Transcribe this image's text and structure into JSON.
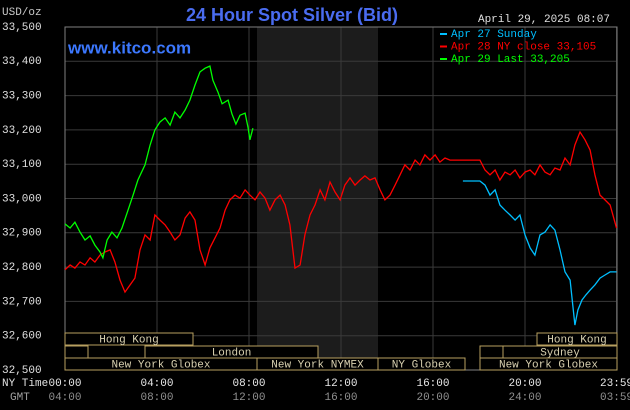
{
  "chart_data": {
    "type": "line",
    "title": "24 Hour Spot Silver (Bid)",
    "y_label": "USD/oz",
    "timestamp": "April 29, 2025 08:07",
    "watermark": "www.kitco.com",
    "x_label": "NY Time",
    "x2_label": "GMT",
    "xlim": [
      0,
      24
    ],
    "xticks": [
      {
        "value": 0,
        "label": "00:00"
      },
      {
        "value": 4,
        "label": "04:00"
      },
      {
        "value": 8,
        "label": "08:00"
      },
      {
        "value": 12,
        "label": "12:00"
      },
      {
        "value": 16,
        "label": "16:00"
      },
      {
        "value": 20,
        "label": "20:00"
      },
      {
        "value": 23.98,
        "label": "23:59"
      }
    ],
    "x2ticks": [
      {
        "value": 0,
        "label": "04:00"
      },
      {
        "value": 4,
        "label": "08:00"
      },
      {
        "value": 8,
        "label": "12:00"
      },
      {
        "value": 12,
        "label": "16:00"
      },
      {
        "value": 16,
        "label": "20:00"
      },
      {
        "value": 20,
        "label": "24:00"
      },
      {
        "value": 23.98,
        "label": "03:59"
      }
    ],
    "ylim": [
      32.5,
      33.5
    ],
    "yticks": [
      {
        "value": 32.5,
        "label": "32,500"
      },
      {
        "value": 32.6,
        "label": "32,600"
      },
      {
        "value": 32.7,
        "label": "32,700"
      },
      {
        "value": 32.8,
        "label": "32,800"
      },
      {
        "value": 32.9,
        "label": "32,900"
      },
      {
        "value": 33.0,
        "label": "33,000"
      },
      {
        "value": 33.1,
        "label": "33,100"
      },
      {
        "value": 33.2,
        "label": "33,200"
      },
      {
        "value": 33.3,
        "label": "33,300"
      },
      {
        "value": 33.4,
        "label": "33,400"
      },
      {
        "value": 33.5,
        "label": "33,500"
      }
    ],
    "grid": true,
    "legend": "top-right",
    "sessions": [
      "Hong Kong",
      "London",
      "New York Globex",
      "New York NYMEX",
      "NY Globex",
      "Hong Kong",
      "Sydney",
      "New York Globex"
    ],
    "series": [
      {
        "name": "Apr 27 Sunday",
        "color": "#00bfff",
        "x": [
          17.3,
          17.61,
          18.04,
          18.26,
          18.48,
          18.7,
          18.91,
          19.13,
          19.35,
          19.57,
          19.78,
          20.0,
          20.22,
          20.43,
          20.65,
          20.87,
          21.09,
          21.3,
          21.52,
          21.74,
          21.96,
          22.17,
          22.3,
          22.48,
          22.65,
          22.83,
          23.04,
          23.26,
          23.48,
          23.7,
          23.98
        ],
        "values": [
          33.051,
          33.051,
          33.051,
          33.039,
          33.01,
          33.025,
          32.981,
          32.966,
          32.952,
          32.937,
          32.952,
          32.894,
          32.856,
          32.835,
          32.894,
          32.902,
          32.923,
          32.908,
          32.85,
          32.786,
          32.762,
          32.631,
          32.675,
          32.704,
          32.719,
          32.733,
          32.748,
          32.768,
          32.777,
          32.786,
          32.786
        ]
      },
      {
        "name": "Apr 28 NY close 33,105",
        "color": "#ff0000",
        "x": [
          0,
          0.22,
          0.43,
          0.65,
          0.87,
          1.09,
          1.3,
          1.52,
          1.74,
          1.96,
          2.17,
          2.39,
          2.61,
          2.83,
          3.04,
          3.26,
          3.48,
          3.7,
          3.91,
          4.13,
          4.35,
          4.57,
          4.78,
          5.0,
          5.22,
          5.43,
          5.65,
          5.87,
          6.09,
          6.3,
          6.52,
          6.74,
          6.96,
          7.17,
          7.39,
          7.61,
          7.83,
          8.04,
          8.26,
          8.48,
          8.7,
          8.91,
          9.13,
          9.35,
          9.57,
          9.78,
          10.0,
          10.22,
          10.43,
          10.65,
          10.87,
          11.09,
          11.3,
          11.52,
          11.74,
          11.96,
          12.17,
          12.39,
          12.61,
          12.83,
          13.04,
          13.26,
          13.48,
          13.7,
          13.91,
          14.13,
          14.35,
          14.57,
          14.78,
          15.0,
          15.22,
          15.43,
          15.65,
          15.87,
          16.09,
          16.3,
          16.52,
          16.74,
          17.17,
          17.61,
          18.04,
          18.26,
          18.48,
          18.7,
          18.91,
          19.13,
          19.35,
          19.57,
          19.78,
          20.0,
          20.22,
          20.43,
          20.65,
          20.87,
          21.09,
          21.3,
          21.52,
          21.74,
          21.96,
          22.17,
          22.39,
          22.61,
          22.83,
          23.04,
          23.26,
          23.48,
          23.7,
          23.91,
          23.98
        ],
        "values": [
          32.792,
          32.806,
          32.797,
          32.815,
          32.806,
          32.827,
          32.815,
          32.835,
          32.844,
          32.85,
          32.815,
          32.762,
          32.727,
          32.748,
          32.768,
          32.85,
          32.894,
          32.879,
          32.952,
          32.937,
          32.923,
          32.902,
          32.879,
          32.894,
          32.943,
          32.961,
          32.937,
          32.85,
          32.806,
          32.856,
          32.885,
          32.914,
          32.966,
          32.996,
          33.01,
          33.001,
          33.025,
          33.01,
          32.996,
          33.019,
          33.001,
          32.966,
          32.996,
          33.01,
          32.981,
          32.923,
          32.797,
          32.806,
          32.894,
          32.952,
          32.981,
          33.025,
          32.996,
          33.048,
          33.019,
          32.996,
          33.039,
          33.06,
          33.039,
          33.054,
          33.066,
          33.054,
          33.06,
          33.025,
          32.996,
          33.01,
          33.039,
          33.069,
          33.098,
          33.083,
          33.112,
          33.098,
          33.127,
          33.112,
          33.127,
          33.106,
          33.118,
          33.112,
          33.112,
          33.112,
          33.112,
          33.083,
          33.069,
          33.083,
          33.054,
          33.077,
          33.069,
          33.083,
          33.06,
          33.077,
          33.083,
          33.069,
          33.098,
          33.077,
          33.069,
          33.089,
          33.083,
          33.118,
          33.098,
          33.156,
          33.194,
          33.171,
          33.141,
          33.069,
          33.01,
          32.996,
          32.981,
          32.931,
          32.914
        ]
      },
      {
        "name": "Apr 29 Last 33,205",
        "color": "#00ff00",
        "x": [
          0,
          0.22,
          0.43,
          0.65,
          0.87,
          1.09,
          1.3,
          1.52,
          1.65,
          1.83,
          2.04,
          2.26,
          2.48,
          2.74,
          2.96,
          3.17,
          3.48,
          3.7,
          3.91,
          4.13,
          4.35,
          4.57,
          4.78,
          5.0,
          5.22,
          5.43,
          5.65,
          5.87,
          6.09,
          6.3,
          6.43,
          6.65,
          6.83,
          7.09,
          7.26,
          7.43,
          7.61,
          7.83,
          7.96,
          8.04,
          8.17
        ],
        "values": [
          32.926,
          32.914,
          32.931,
          32.902,
          32.879,
          32.891,
          32.864,
          32.844,
          32.827,
          32.879,
          32.902,
          32.885,
          32.914,
          32.966,
          33.01,
          33.054,
          33.098,
          33.156,
          33.2,
          33.223,
          33.235,
          33.214,
          33.252,
          33.235,
          33.258,
          33.287,
          33.331,
          33.369,
          33.38,
          33.386,
          33.345,
          33.31,
          33.276,
          33.287,
          33.246,
          33.217,
          33.243,
          33.249,
          33.206,
          33.171,
          33.205
        ]
      }
    ]
  }
}
